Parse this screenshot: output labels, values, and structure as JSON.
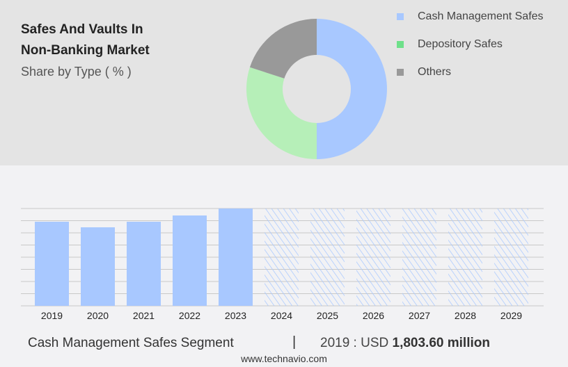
{
  "title_line1": "Safes And Vaults In",
  "title_line2": "Non-Banking Market",
  "subtitle": "Share by Type ( % )",
  "chart_data": [
    {
      "type": "pie",
      "variant": "donut",
      "labels": [
        "Cash Management Safes",
        "Depository Safes",
        "Others"
      ],
      "values": [
        50,
        30,
        20
      ],
      "colors": [
        "#a8c8ff",
        "#b6efb8",
        "#999999"
      ],
      "legend": "right"
    },
    {
      "type": "bar",
      "categories": [
        "2019",
        "2020",
        "2021",
        "2022",
        "2023",
        "2024",
        "2025",
        "2026",
        "2027",
        "2028",
        "2029"
      ],
      "values": [
        1803.6,
        1684,
        1803.6,
        1938,
        2087,
        null,
        null,
        null,
        null,
        null,
        null
      ],
      "forecast": [
        "2024",
        "2025",
        "2026",
        "2027",
        "2028",
        "2029"
      ],
      "ylim": [
        0,
        2087
      ],
      "grid": true,
      "color": "#a8c8ff"
    }
  ],
  "footer": {
    "segment": "Cash Management Safes Segment",
    "separator": "|",
    "year_label": "2019 : USD",
    "value": "1,803.60 million"
  },
  "url": "www.technavio.com"
}
